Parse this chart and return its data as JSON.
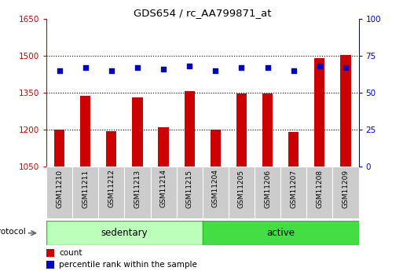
{
  "title": "GDS654 / rc_AA799871_at",
  "samples": [
    "GSM11210",
    "GSM11211",
    "GSM11212",
    "GSM11213",
    "GSM11214",
    "GSM11215",
    "GSM11204",
    "GSM11205",
    "GSM11206",
    "GSM11207",
    "GSM11208",
    "GSM11209"
  ],
  "count_values": [
    1200,
    1337,
    1193,
    1330,
    1210,
    1358,
    1202,
    1347,
    1347,
    1190,
    1490,
    1505
  ],
  "percentile_values": [
    65,
    67,
    65,
    67,
    66,
    68,
    65,
    67,
    67,
    65,
    68,
    67
  ],
  "bar_bottom": 1050,
  "ylim_left": [
    1050,
    1650
  ],
  "ylim_right": [
    0,
    100
  ],
  "yticks_left": [
    1050,
    1200,
    1350,
    1500,
    1650
  ],
  "yticks_right": [
    0,
    25,
    50,
    75,
    100
  ],
  "bar_color": "#cc0000",
  "dot_color": "#0000cc",
  "sedentary_color": "#bbffbb",
  "active_color": "#44dd44",
  "group_labels": [
    "sedentary",
    "active"
  ],
  "protocol_label": "protocol",
  "legend_count": "count",
  "legend_percentile": "percentile rank within the sample",
  "tick_label_color_left": "#cc0000",
  "tick_label_color_right": "#0000cc"
}
